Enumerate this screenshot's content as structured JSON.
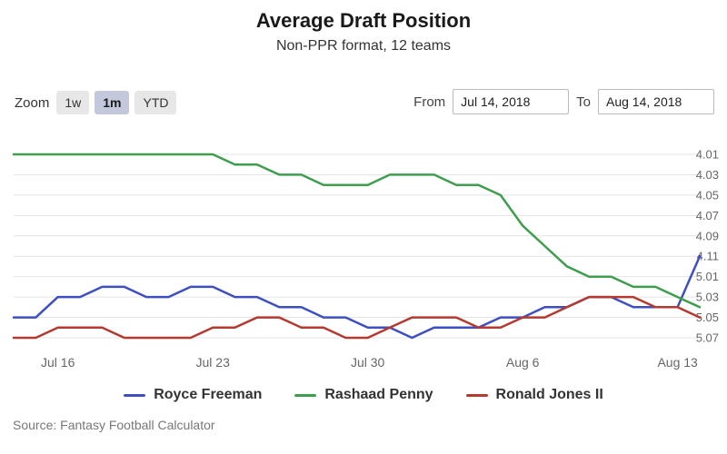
{
  "header": {
    "title": "Average Draft Position",
    "subtitle": "Non-PPR format, 12 teams"
  },
  "toolbar": {
    "zoom_label": "Zoom",
    "zoom_buttons": [
      {
        "label": "1w",
        "active": false
      },
      {
        "label": "1m",
        "active": true
      },
      {
        "label": "YTD",
        "active": false
      }
    ],
    "from_label": "From",
    "from_value": "Jul 14, 2018",
    "to_label": "To",
    "to_value": "Aug 14, 2018"
  },
  "chart_data": {
    "type": "line",
    "title": "Average Draft Position",
    "subtitle": "Non-PPR format, 12 teams",
    "x": [
      "Jul 14",
      "Jul 15",
      "Jul 16",
      "Jul 17",
      "Jul 18",
      "Jul 19",
      "Jul 20",
      "Jul 21",
      "Jul 22",
      "Jul 23",
      "Jul 24",
      "Jul 25",
      "Jul 26",
      "Jul 27",
      "Jul 28",
      "Jul 29",
      "Jul 30",
      "Jul 31",
      "Aug 1",
      "Aug 2",
      "Aug 3",
      "Aug 4",
      "Aug 5",
      "Aug 6",
      "Aug 7",
      "Aug 8",
      "Aug 9",
      "Aug 10",
      "Aug 11",
      "Aug 12",
      "Aug 13",
      "Aug 14"
    ],
    "series": [
      {
        "name": "Royce Freeman",
        "color": "#3e4fc1",
        "values": [
          5.05,
          5.05,
          5.03,
          5.03,
          5.02,
          5.02,
          5.03,
          5.03,
          5.02,
          5.02,
          5.03,
          5.03,
          5.04,
          5.04,
          5.05,
          5.05,
          5.06,
          5.06,
          5.07,
          5.06,
          5.06,
          5.06,
          5.05,
          5.05,
          5.04,
          5.04,
          5.03,
          5.03,
          5.04,
          5.04,
          5.04,
          4.11
        ]
      },
      {
        "name": "Rashaad Penny",
        "color": "#3f9d4e",
        "values": [
          4.01,
          4.01,
          4.01,
          4.01,
          4.01,
          4.01,
          4.01,
          4.01,
          4.01,
          4.01,
          4.02,
          4.02,
          4.03,
          4.03,
          4.04,
          4.04,
          4.04,
          4.03,
          4.03,
          4.03,
          4.04,
          4.04,
          4.05,
          4.08,
          4.1,
          4.12,
          5.01,
          5.01,
          5.02,
          5.02,
          5.03,
          5.04
        ]
      },
      {
        "name": "Ronald Jones II",
        "color": "#b5392e",
        "values": [
          5.07,
          5.07,
          5.06,
          5.06,
          5.06,
          5.07,
          5.07,
          5.07,
          5.07,
          5.06,
          5.06,
          5.05,
          5.05,
          5.06,
          5.06,
          5.07,
          5.07,
          5.06,
          5.05,
          5.05,
          5.05,
          5.06,
          5.06,
          5.05,
          5.05,
          5.04,
          5.03,
          5.03,
          5.03,
          5.04,
          5.04,
          5.05
        ]
      }
    ],
    "y_ticks": [
      "4.01",
      "4.03",
      "4.05",
      "4.07",
      "4.09",
      "4.11",
      "5.01",
      "5.03",
      "5.05",
      "5.07"
    ],
    "x_ticks": [
      {
        "label": "Jul 16",
        "index": 2
      },
      {
        "label": "Jul 23",
        "index": 9
      },
      {
        "label": "Jul 30",
        "index": 16
      },
      {
        "label": "Aug 6",
        "index": 23
      },
      {
        "label": "Aug 13",
        "index": 30
      }
    ],
    "value_format": "round.pick (12-team draft), earlier picks at top (axis inverted)",
    "grid": true,
    "legend_position": "bottom",
    "teams_per_round": 12
  },
  "footer": {
    "source": "Source: Fantasy Football Calculator"
  }
}
